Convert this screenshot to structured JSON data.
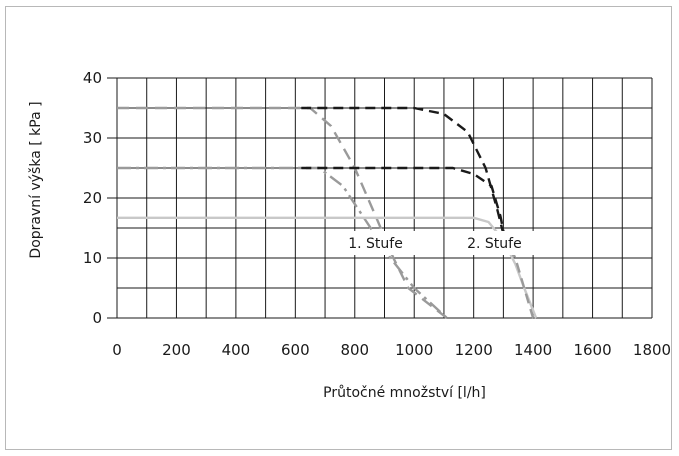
{
  "chart_data": {
    "type": "line",
    "xlabel": "Průtočné množství [l/h]",
    "ylabel": "Dopravní výška [ kPa ]",
    "xlim": [
      0,
      1800
    ],
    "ylim": [
      0,
      40
    ],
    "x_ticks": [
      0,
      200,
      400,
      600,
      800,
      1000,
      1200,
      1400,
      1600,
      1800
    ],
    "y_ticks": [
      0,
      10,
      20,
      30,
      40
    ],
    "grid": true,
    "annotations": [
      {
        "text": "1. Stufe",
        "x": 1000,
        "y": 12.5
      },
      {
        "text": "2. Stufe",
        "x": 1400,
        "y": 12.5
      }
    ],
    "series": [
      {
        "color": "#9a9a9a",
        "dash": "long-dash",
        "points": [
          [
            0,
            35
          ],
          [
            650,
            35
          ],
          [
            720,
            32
          ],
          [
            800,
            25
          ],
          [
            870,
            17
          ],
          [
            930,
            10
          ],
          [
            980,
            5
          ],
          [
            1110,
            0
          ]
        ]
      },
      {
        "color": "#1a1a1a",
        "dash": "dash",
        "points": [
          [
            620,
            35
          ],
          [
            1000,
            35
          ],
          [
            1100,
            34
          ],
          [
            1180,
            31
          ],
          [
            1240,
            25
          ],
          [
            1280,
            18
          ],
          [
            1300,
            14
          ],
          [
            1330,
            10
          ]
        ]
      },
      {
        "color": "#9a9a9a",
        "dash": "dash-dot",
        "points": [
          [
            0,
            25
          ],
          [
            680,
            25
          ],
          [
            760,
            22
          ],
          [
            840,
            16
          ],
          [
            920,
            10
          ],
          [
            1000,
            5
          ],
          [
            1110,
            0
          ]
        ]
      },
      {
        "color": "#1a1a1a",
        "dash": "dash",
        "points": [
          [
            620,
            25
          ],
          [
            1130,
            25
          ],
          [
            1200,
            24
          ],
          [
            1260,
            22
          ],
          [
            1290,
            17
          ],
          [
            1310,
            12
          ],
          [
            1330,
            10
          ]
        ]
      },
      {
        "color": "#c8c8c8",
        "dash": "solid",
        "points": [
          [
            0,
            16.7
          ],
          [
            1200,
            16.7
          ],
          [
            1250,
            16
          ],
          [
            1300,
            13
          ],
          [
            1340,
            9
          ],
          [
            1370,
            5
          ],
          [
            1410,
            0
          ]
        ]
      },
      {
        "color": "#9a9a9a",
        "dash": "dash",
        "points": [
          [
            1300,
            14
          ],
          [
            1340,
            10
          ],
          [
            1370,
            5
          ],
          [
            1400,
            0
          ]
        ]
      }
    ]
  }
}
